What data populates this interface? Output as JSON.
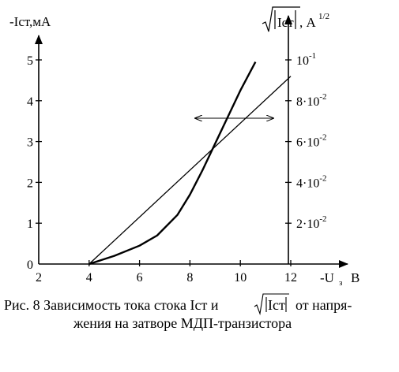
{
  "chart_data": {
    "type": "line",
    "title": "",
    "x_axis": {
      "label": "-U",
      "label_subscript": "з",
      "unit": "В",
      "ticks": [
        "2",
        "4",
        "6",
        "8",
        "10",
        "12"
      ],
      "range": [
        2,
        13.2
      ]
    },
    "y_left": {
      "label": "-Iст,мА",
      "ticks": [
        "0",
        "1",
        "2",
        "3",
        "4",
        "5"
      ],
      "range": [
        0,
        5.7
      ]
    },
    "y_right": {
      "label_sqrt_text": "Iст",
      "label_unit": ", А",
      "label_unit_sup": "1/2",
      "tick_labels": [
        {
          "mantissa": "2·10",
          "exp": "-2"
        },
        {
          "mantissa": "4·10",
          "exp": "-2"
        },
        {
          "mantissa": "6·10",
          "exp": "-2"
        },
        {
          "mantissa": "8·10",
          "exp": "-2"
        },
        {
          "mantissa": "10",
          "exp": "-1"
        }
      ],
      "tick_values_left_units": [
        1,
        2,
        3,
        4,
        5
      ]
    },
    "series": [
      {
        "axis": "left",
        "x": [
          4.0,
          5.0,
          6.0,
          6.7,
          7.5,
          8.0,
          8.5,
          9.0,
          9.5,
          10.0,
          10.6
        ],
        "y": [
          0.0,
          0.2,
          0.45,
          0.7,
          1.2,
          1.7,
          2.3,
          2.95,
          3.6,
          4.25,
          4.95
        ]
      },
      {
        "axis": "right",
        "x": [
          4.0,
          12.0
        ],
        "y": [
          0.0,
          4.6
        ]
      }
    ],
    "annotations": [
      "double-headed arrow indicating curve-to-axis correspondence"
    ],
    "grid": false,
    "legend": "none"
  },
  "caption": {
    "line1_before": "Рис. 8 Зависимость тока стока Iст и",
    "sqrt_text": "Iст",
    "line1_after": "от напря-",
    "line2": "жения на затворе МДП-транзистора"
  }
}
